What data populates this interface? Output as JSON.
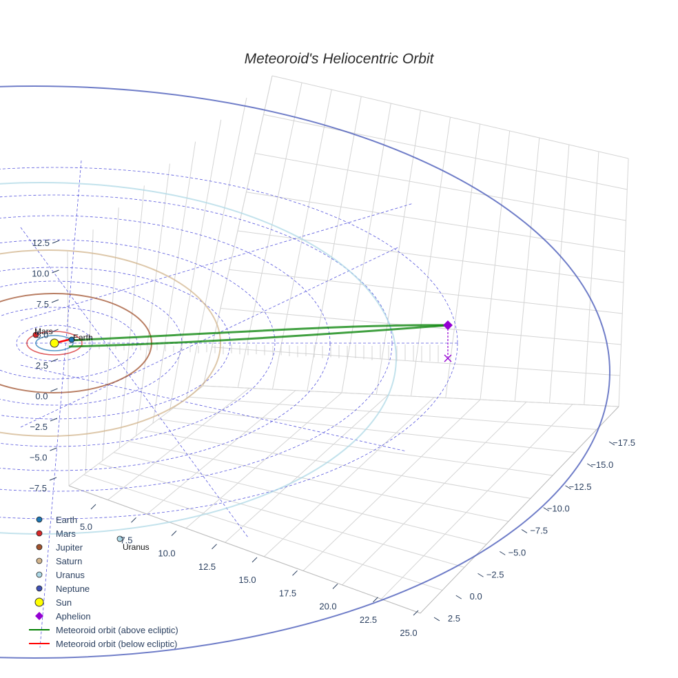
{
  "chart_data": {
    "type": "scatter3d",
    "title": "Meteoroid's Heliocentric Orbit",
    "x_ticks": [
      "5.0",
      "7.5",
      "10.0",
      "12.5",
      "15.0",
      "17.5",
      "20.0",
      "22.5",
      "25.0"
    ],
    "y_ticks": [
      "−17.5",
      "−15.0",
      "−12.5",
      "−10.0",
      "−7.5",
      "−5.0",
      "−2.5",
      "0.0",
      "2.5"
    ],
    "z_ticks": [
      "12.5",
      "10.0",
      "7.5",
      "5.0",
      "2.5",
      "0.0",
      "−2.5",
      "−5.0",
      "−7.5"
    ],
    "planets": [
      {
        "name": "Earth",
        "color": "#1f77b4",
        "label": "Earth",
        "orbit_au": 1.0
      },
      {
        "name": "Mars",
        "color": "#d62728",
        "label": "Mars",
        "orbit_au": 1.52
      },
      {
        "name": "Jupiter",
        "color": "#a0522d",
        "orbit_au": 5.2
      },
      {
        "name": "Saturn",
        "color": "#d2b48c",
        "orbit_au": 9.5
      },
      {
        "name": "Uranus",
        "color": "#add8e6",
        "label": "Uranus",
        "orbit_au": 19.2
      },
      {
        "name": "Neptune",
        "color": "#3f51b5",
        "orbit_au": 30.1
      }
    ],
    "sun": {
      "name": "Sun",
      "color": "#ffff00"
    },
    "aphelion": {
      "name": "Aphelion",
      "color": "#9400d3"
    },
    "meteoroid_orbit": [
      {
        "name": "Meteoroid orbit (above ecliptic)",
        "color": "#008000"
      },
      {
        "name": "Meteoroid orbit (below ecliptic)",
        "color": "#ff0000"
      }
    ],
    "legend_position": "bottom-left"
  },
  "legend": [
    {
      "label": "Earth",
      "kind": "dot",
      "color": "#1f77b4"
    },
    {
      "label": "Mars",
      "kind": "dot",
      "color": "#d62728"
    },
    {
      "label": "Jupiter",
      "kind": "dot",
      "color": "#a0522d"
    },
    {
      "label": "Saturn",
      "kind": "dot",
      "color": "#d2b48c"
    },
    {
      "label": "Uranus",
      "kind": "dot",
      "color": "#add8e6"
    },
    {
      "label": "Neptune",
      "kind": "dot",
      "color": "#3f51b5"
    },
    {
      "label": "Sun",
      "kind": "bigdot",
      "color": "#ffff00"
    },
    {
      "label": "Aphelion",
      "kind": "diamond",
      "color": "#9400d3"
    },
    {
      "label": "Meteoroid orbit (above ecliptic)",
      "kind": "line",
      "color": "#008000"
    },
    {
      "label": "Meteoroid orbit (below ecliptic)",
      "kind": "line",
      "color": "#ff0000"
    }
  ]
}
